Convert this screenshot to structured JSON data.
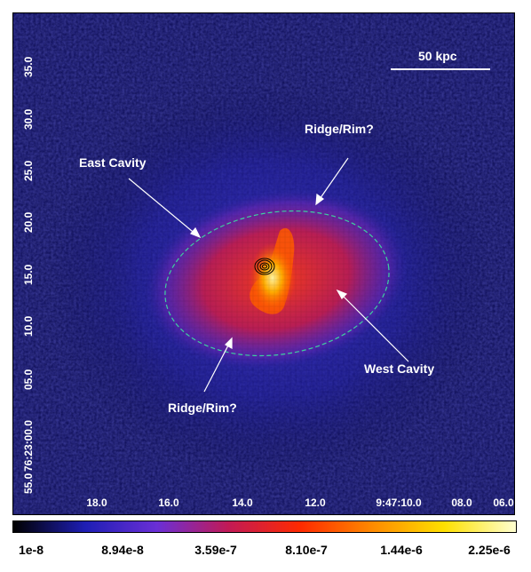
{
  "image": {
    "y_ticks": [
      "35.0",
      "30.0",
      "25.0",
      "20.0",
      "15.0",
      "10.0",
      "05.0",
      "76:23:00.0",
      "55.0"
    ],
    "x_ticks": [
      "18.0",
      "16.0",
      "14.0",
      "12.0",
      "9:47:10.0",
      "08.0",
      "06.0"
    ],
    "scale_bar_label": "50 kpc",
    "annotations": {
      "east_cavity": "East Cavity",
      "ridge_top": "Ridge/Rim?",
      "west_cavity": "West Cavity",
      "ridge_bottom": "Ridge/Rim?"
    },
    "colors": {
      "background": "#0b0b55",
      "ellipse": "#3fcf9f",
      "contours": "#000000"
    }
  },
  "colorbar": {
    "labels": [
      "1e-8",
      "8.94e-8",
      "3.59e-7",
      "8.10e-7",
      "1.44e-6",
      "2.25e-6"
    ],
    "colors": [
      "#000000",
      "#1e1eb4",
      "#6a2fd6",
      "#c21a55",
      "#ff2a00",
      "#ff8a00",
      "#ffe000",
      "#ffffd0"
    ]
  }
}
